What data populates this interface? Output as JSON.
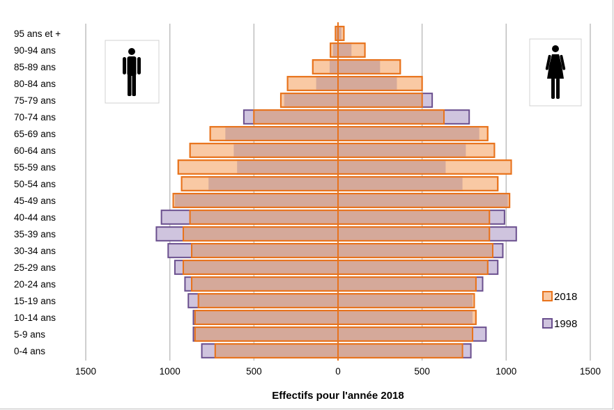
{
  "chart_data": {
    "type": "bar",
    "orientation": "horizontal",
    "layout": "population-pyramid",
    "xlabel": "Effectifs pour l'année 2018",
    "xlim": [
      -1500,
      1500
    ],
    "x_ticks": [
      -1500,
      -1000,
      -500,
      0,
      500,
      1000,
      1500
    ],
    "x_tick_labels": [
      "1500",
      "1000",
      "500",
      "0",
      "500",
      "1000",
      "1500"
    ],
    "grid": "vertical",
    "legend_position": "right",
    "categories": [
      "95 ans et +",
      "90-94 ans",
      "85-89 ans",
      "80-84 ans",
      "75-79 ans",
      "70-74 ans",
      "65-69 ans",
      "60-64 ans",
      "55-59 ans",
      "50-54 ans",
      "45-49 ans",
      "40-44 ans",
      "35-39 ans",
      "30-34 ans",
      "25-29 ans",
      "20-24 ans",
      "15-19 ans",
      "10-14 ans",
      "5-9 ans",
      "0-4 ans"
    ],
    "series": [
      {
        "name": "2018",
        "color": "#f9c9a4",
        "border": "#e8731c",
        "men": [
          15,
          45,
          150,
          300,
          340,
          500,
          760,
          880,
          950,
          930,
          980,
          880,
          920,
          870,
          920,
          870,
          830,
          850,
          850,
          730
        ],
        "women": [
          35,
          160,
          370,
          500,
          500,
          630,
          890,
          930,
          1030,
          950,
          1020,
          900,
          900,
          920,
          890,
          820,
          810,
          820,
          800,
          740
        ]
      },
      {
        "name": "1998",
        "color": "#cfc4de",
        "border": "#6a4f8e",
        "men": [
          10,
          30,
          50,
          130,
          320,
          560,
          670,
          620,
          600,
          770,
          970,
          1050,
          1080,
          1010,
          970,
          910,
          890,
          860,
          860,
          810
        ],
        "women": [
          20,
          80,
          250,
          350,
          560,
          780,
          840,
          760,
          640,
          740,
          1010,
          990,
          1060,
          980,
          950,
          860,
          800,
          800,
          880,
          790
        ]
      }
    ]
  },
  "icons": {
    "men": "man-icon",
    "women": "woman-icon"
  }
}
